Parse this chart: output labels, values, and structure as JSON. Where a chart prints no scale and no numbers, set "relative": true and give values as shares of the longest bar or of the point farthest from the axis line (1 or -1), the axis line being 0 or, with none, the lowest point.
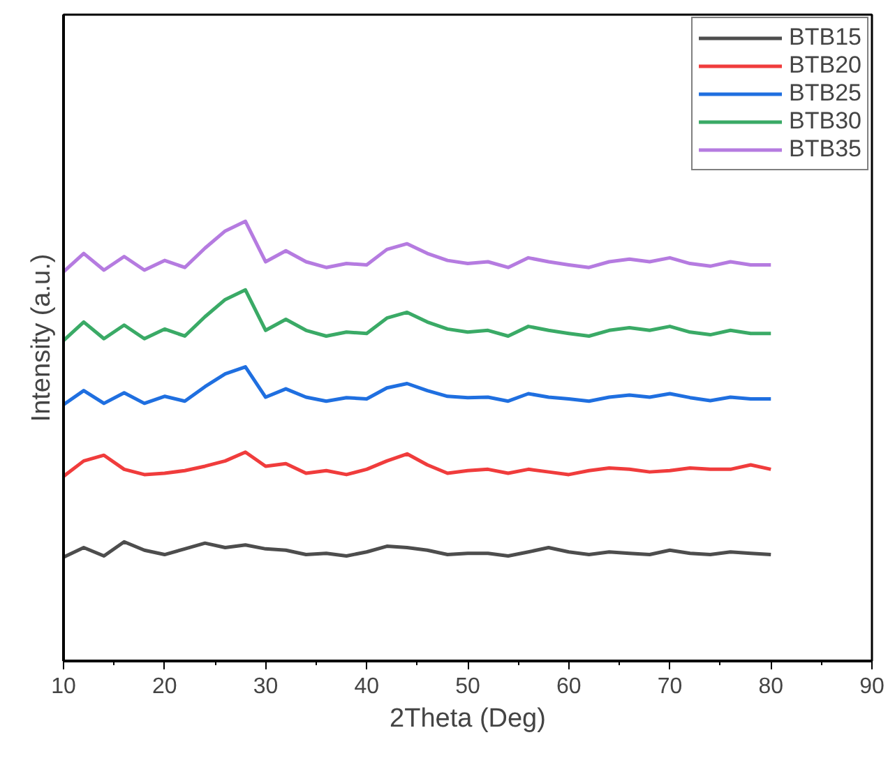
{
  "chart_data": {
    "type": "line",
    "relative": true,
    "xlabel": "2Theta (Deg)",
    "ylabel": "Intensity (a.u.)",
    "xlim": [
      10,
      90
    ],
    "xticks": [
      10,
      {
        "value": 15,
        "label": null
      },
      20,
      {
        "value": 25,
        "label": null
      },
      30,
      {
        "value": 35,
        "label": null
      },
      40,
      {
        "value": 45,
        "label": null
      },
      50,
      {
        "value": 55,
        "label": null
      },
      60,
      {
        "value": 65,
        "label": null
      },
      70,
      {
        "value": 75,
        "label": null
      },
      80,
      {
        "value": 85,
        "label": null
      },
      90
    ],
    "x": [
      10,
      12,
      14,
      16,
      18,
      20,
      22,
      24,
      26,
      28,
      30,
      32,
      34,
      36,
      38,
      40,
      42,
      44,
      46,
      48,
      50,
      52,
      54,
      56,
      58,
      60,
      62,
      64,
      66,
      68,
      70,
      72,
      74,
      76,
      78,
      80
    ],
    "grid": false,
    "legend": "top right",
    "marker": "none",
    "line_style": "solid",
    "series": [
      {
        "name": "BTB15",
        "color": "#4d4d4d",
        "values": [
          0.236,
          0.258,
          0.239,
          0.271,
          0.252,
          0.242,
          0.255,
          0.268,
          0.258,
          0.264,
          0.255,
          0.252,
          0.242,
          0.245,
          0.239,
          0.248,
          0.261,
          0.258,
          0.252,
          0.242,
          0.245,
          0.245,
          0.239,
          0.248,
          0.258,
          0.248,
          0.242,
          0.248,
          0.245,
          0.242,
          0.252,
          0.245,
          0.242,
          0.248,
          0.245,
          0.242
        ]
      },
      {
        "name": "BTB20",
        "color": "#f03c3c",
        "values": [
          0.42,
          0.455,
          0.468,
          0.436,
          0.424,
          0.427,
          0.433,
          0.443,
          0.455,
          0.475,
          0.443,
          0.449,
          0.427,
          0.433,
          0.424,
          0.436,
          0.455,
          0.471,
          0.446,
          0.427,
          0.433,
          0.436,
          0.427,
          0.436,
          0.43,
          0.424,
          0.433,
          0.439,
          0.436,
          0.43,
          0.433,
          0.439,
          0.436,
          0.436,
          0.446,
          0.436
        ]
      },
      {
        "name": "BTB25",
        "color": "#1f6fe0",
        "values": [
          0.583,
          0.615,
          0.586,
          0.61,
          0.586,
          0.602,
          0.591,
          0.624,
          0.653,
          0.669,
          0.6,
          0.619,
          0.6,
          0.591,
          0.599,
          0.596,
          0.621,
          0.631,
          0.615,
          0.602,
          0.599,
          0.6,
          0.591,
          0.608,
          0.6,
          0.596,
          0.591,
          0.6,
          0.605,
          0.6,
          0.608,
          0.599,
          0.592,
          0.6,
          0.596,
          0.596
        ]
      },
      {
        "name": "BTB30",
        "color": "#3aaa66",
        "values": [
          0.729,
          0.771,
          0.733,
          0.764,
          0.733,
          0.755,
          0.739,
          0.783,
          0.822,
          0.844,
          0.752,
          0.777,
          0.752,
          0.739,
          0.748,
          0.745,
          0.78,
          0.793,
          0.771,
          0.755,
          0.748,
          0.752,
          0.739,
          0.761,
          0.752,
          0.745,
          0.739,
          0.752,
          0.758,
          0.752,
          0.761,
          0.748,
          0.742,
          0.752,
          0.745,
          0.745
        ]
      },
      {
        "name": "BTB35",
        "color": "#b57be0",
        "values": [
          0.885,
          0.927,
          0.889,
          0.92,
          0.889,
          0.911,
          0.895,
          0.939,
          0.978,
          1.0,
          0.908,
          0.933,
          0.908,
          0.895,
          0.904,
          0.901,
          0.936,
          0.949,
          0.927,
          0.911,
          0.904,
          0.908,
          0.895,
          0.917,
          0.908,
          0.901,
          0.895,
          0.908,
          0.914,
          0.908,
          0.917,
          0.904,
          0.898,
          0.908,
          0.901,
          0.901
        ]
      }
    ]
  }
}
